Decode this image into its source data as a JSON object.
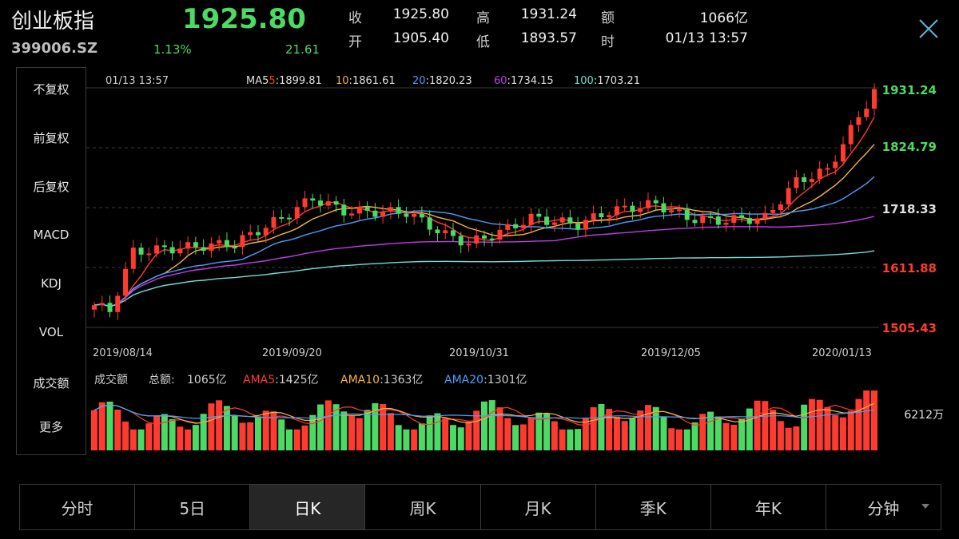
{
  "header": {
    "name": "创业板指",
    "code": "399006.SZ",
    "price": "1925.80",
    "change_pct": "1.13%",
    "change_val": "21.61",
    "quote": {
      "close_label": "收",
      "close": "1925.80",
      "high_label": "高",
      "high": "1931.24",
      "amount_label": "额",
      "amount": "1066亿",
      "open_label": "开",
      "open": "1905.40",
      "low_label": "低",
      "low": "1893.57",
      "time_label": "时",
      "time": "01/13 13:57"
    }
  },
  "side_menu": {
    "items": [
      {
        "label": "不复权",
        "active": true
      },
      {
        "label": "前复权",
        "active": false
      },
      {
        "label": "后复权",
        "active": false
      },
      {
        "label": "MACD",
        "active": false
      },
      {
        "label": "KDJ",
        "active": false
      },
      {
        "label": "VOL",
        "active": false
      },
      {
        "label": "成交额",
        "active": true
      },
      {
        "label": "更多",
        "active": false
      }
    ]
  },
  "chart": {
    "timestamp": "01/13 13:57",
    "ma": [
      {
        "label": "MA5",
        "name": "5",
        "value": "1899.81",
        "color": "#ff3b30"
      },
      {
        "label": "",
        "name": "10",
        "value": "1861.61",
        "color": "#f7b443"
      },
      {
        "label": "",
        "name": "20",
        "value": "1820.23",
        "color": "#4a9eff"
      },
      {
        "label": "",
        "name": "60",
        "value": "1734.15",
        "color": "#c23ce8"
      },
      {
        "label": "",
        "name": "100",
        "value": "1703.21",
        "color": "#6fe0d8"
      }
    ],
    "price_levels": [
      {
        "value": "1931.24",
        "color": "#4cd964"
      },
      {
        "value": "1824.79",
        "color": "#4cd964"
      },
      {
        "value": "1718.33",
        "color": "#e0e0e0"
      },
      {
        "value": "1611.88",
        "color": "#ff3b30"
      },
      {
        "value": "1505.43",
        "color": "#ff3b30"
      }
    ],
    "dates": [
      "2019/08/14",
      "2019/09/20",
      "2019/10/31",
      "2019/12/05",
      "2020/01/13"
    ],
    "colors": {
      "up": "#ff3b30",
      "down": "#4cd964"
    }
  },
  "volume": {
    "label": "成交额",
    "total_label": "总额:",
    "total": "1065亿",
    "ama": [
      {
        "name": "AMA5",
        "value": "1425亿",
        "color": "#ff3b30"
      },
      {
        "name": "AMA10",
        "value": "1363亿",
        "color": "#f7b443"
      },
      {
        "name": "AMA20",
        "value": "1301亿",
        "color": "#4a9eff"
      }
    ],
    "scale_label": "6212万"
  },
  "tabs": [
    {
      "label": "分时",
      "active": false
    },
    {
      "label": "5日",
      "active": false
    },
    {
      "label": "日K",
      "active": true
    },
    {
      "label": "周K",
      "active": false
    },
    {
      "label": "月K",
      "active": false
    },
    {
      "label": "季K",
      "active": false
    },
    {
      "label": "年K",
      "active": false
    },
    {
      "label": "分钟",
      "active": false,
      "dropdown": true
    }
  ]
}
